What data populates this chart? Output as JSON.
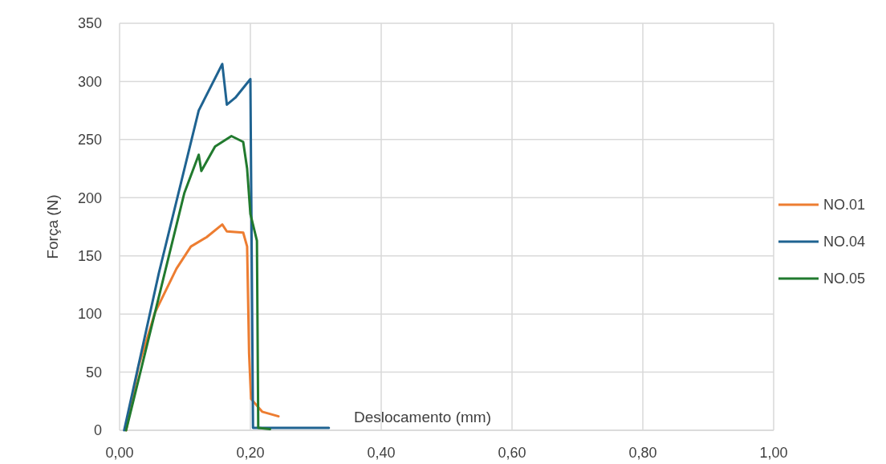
{
  "chart_data": {
    "type": "line",
    "xlabel": "Deslocamento (mm)",
    "ylabel": "Força (N)",
    "xlim": [
      0,
      1
    ],
    "xticks": [
      {
        "value": 0,
        "label": "0,00"
      },
      {
        "value": 0.2,
        "label": "0,20"
      },
      {
        "value": 0.4,
        "label": "0,40"
      },
      {
        "value": 0.6,
        "label": "0,60"
      },
      {
        "value": 0.8,
        "label": "0,80"
      },
      {
        "value": 1,
        "label": "1,00"
      }
    ],
    "ylim": [
      0,
      350
    ],
    "yticks": [
      0,
      50,
      100,
      150,
      200,
      250,
      300,
      350
    ],
    "grid": true,
    "legend": "right",
    "marker": "none",
    "line_style": "solid",
    "series": [
      {
        "name": "NO.01",
        "color": "#ed7d31",
        "x": [
          0.01,
          0.029,
          0.054,
          0.087,
          0.109,
          0.133,
          0.157,
          0.164,
          0.189,
          0.195,
          0.198,
          0.201,
          0.218,
          0.243
        ],
        "values": [
          0,
          55,
          101,
          139,
          158,
          166,
          177,
          171,
          170,
          158,
          66,
          27,
          16,
          12
        ]
      },
      {
        "name": "NO.04",
        "color": "#1f6391",
        "x": [
          0.007,
          0.06,
          0.121,
          0.157,
          0.164,
          0.177,
          0.2,
          0.204,
          0.26,
          0.32
        ],
        "values": [
          0,
          135,
          275,
          315,
          280,
          286,
          302,
          2,
          2,
          2
        ]
      },
      {
        "name": "NO.05",
        "color": "#217a2e",
        "x": [
          0.01,
          0.099,
          0.121,
          0.125,
          0.146,
          0.171,
          0.189,
          0.195,
          0.2,
          0.21,
          0.212,
          0.23
        ],
        "values": [
          0,
          204,
          237,
          223,
          244,
          253,
          248,
          225,
          186,
          163,
          2,
          1
        ]
      }
    ]
  }
}
